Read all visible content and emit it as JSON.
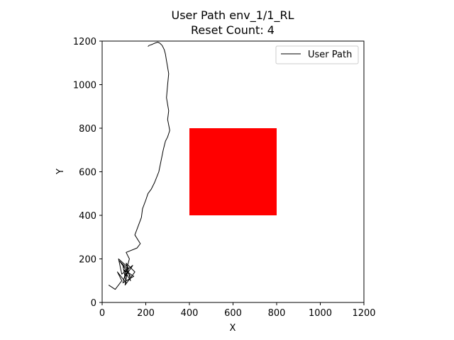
{
  "chart_data": {
    "type": "line",
    "title_line1": "User Path env_1/1_RL",
    "title_line2": "Reset Count: 4",
    "xlabel": "X",
    "ylabel": "Y",
    "xlim": [
      0,
      1200
    ],
    "ylim": [
      0,
      1200
    ],
    "x_ticks": [
      0,
      200,
      400,
      600,
      800,
      1000,
      1200
    ],
    "y_ticks": [
      0,
      200,
      400,
      600,
      800,
      1000,
      1200
    ],
    "x_tick_labels": [
      "0",
      "200",
      "400",
      "600",
      "800",
      "1000",
      "1200"
    ],
    "y_tick_labels": [
      "0",
      "200",
      "400",
      "600",
      "800",
      "1000",
      "1200"
    ],
    "grid": false,
    "legend_position": "top-right",
    "series": [
      {
        "name": "User Path",
        "color": "#000000",
        "x": [
          30,
          60,
          90,
          70,
          110,
          95,
          130,
          80,
          120,
          100,
          140,
          90,
          75,
          120,
          105,
          150,
          110,
          130,
          100,
          145,
          95,
          125,
          110,
          160,
          175,
          150,
          165,
          180,
          185,
          200,
          210,
          225,
          240,
          260,
          270,
          280,
          290,
          300,
          310,
          300,
          305,
          295,
          300,
          305,
          300,
          295,
          290,
          285,
          280,
          275,
          265,
          255,
          240,
          230,
          215,
          210
        ],
        "y": [
          80,
          60,
          100,
          140,
          90,
          170,
          120,
          190,
          150,
          110,
          170,
          130,
          200,
          160,
          80,
          140,
          180,
          100,
          150,
          120,
          90,
          200,
          230,
          250,
          270,
          310,
          350,
          390,
          430,
          470,
          500,
          520,
          550,
          600,
          650,
          700,
          740,
          760,
          790,
          840,
          880,
          940,
          1000,
          1050,
          1080,
          1110,
          1140,
          1160,
          1170,
          1180,
          1190,
          1195,
          1190,
          1185,
          1180,
          1175
        ]
      }
    ],
    "obstacle": {
      "x0": 400,
      "x1": 800,
      "y0": 400,
      "y1": 800,
      "color": "#ff0000"
    }
  }
}
